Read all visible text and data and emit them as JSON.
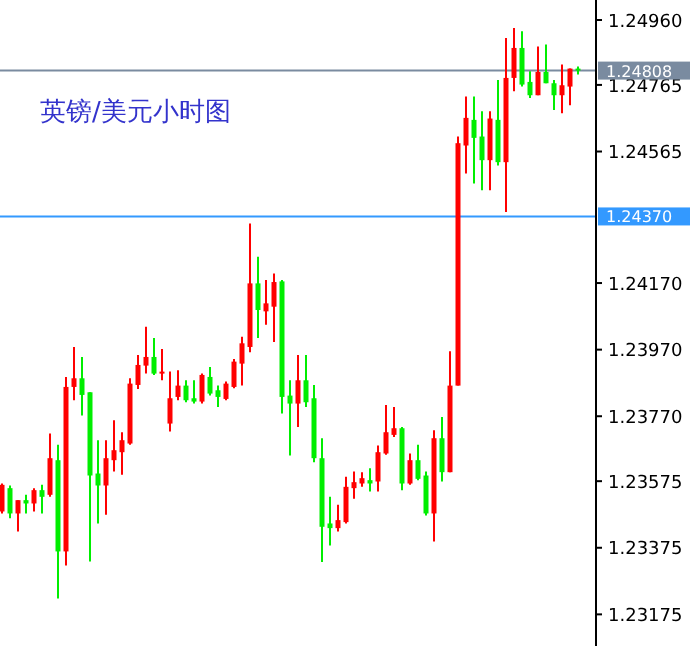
{
  "chart_data": {
    "type": "candlestick",
    "title": "英镑/美元小时图",
    "categories": [
      null,
      null,
      null,
      null,
      null,
      null,
      null,
      null,
      null,
      null,
      null,
      null,
      null,
      null,
      null,
      null,
      null,
      null,
      null,
      null,
      null,
      null,
      null,
      null,
      null,
      null,
      null,
      null,
      null,
      null,
      null,
      null,
      null,
      null,
      null,
      null,
      null,
      null,
      null,
      null,
      null,
      null,
      null,
      null,
      null,
      null,
      null,
      null,
      null,
      null,
      null,
      null,
      null,
      null,
      null,
      null,
      null,
      null,
      null,
      null,
      null,
      null,
      null,
      null,
      null,
      null,
      null,
      null,
      null,
      null,
      null,
      null,
      null
    ],
    "ohlc": [
      [
        1.23484,
        1.23568,
        1.23478,
        1.23564
      ],
      [
        1.23554,
        1.23562,
        1.23464,
        1.23478
      ],
      [
        1.23478,
        1.23518,
        1.23424,
        1.23518
      ],
      [
        1.23518,
        1.23534,
        1.23478,
        1.23508
      ],
      [
        1.23508,
        1.23554,
        1.23484,
        1.23548
      ],
      [
        1.23548,
        1.23564,
        1.23478,
        1.23528
      ],
      [
        1.23534,
        1.23718,
        1.23528,
        1.23644
      ],
      [
        1.23638,
        1.23684,
        1.23223,
        1.23364
      ],
      [
        1.23364,
        1.23888,
        1.23322,
        1.23858
      ],
      [
        1.23858,
        1.23978,
        1.23818,
        1.23884
      ],
      [
        1.23884,
        1.23948,
        1.23772,
        1.23834
      ],
      [
        1.23842,
        1.23842,
        1.23334,
        1.23592
      ],
      [
        1.23598,
        1.23698,
        1.23448,
        1.23562
      ],
      [
        1.23562,
        1.23698,
        1.23474,
        1.23644
      ],
      [
        1.23638,
        1.23758,
        1.23604,
        1.23668
      ],
      [
        1.23662,
        1.23722,
        1.23594,
        1.23698
      ],
      [
        1.23688,
        1.23884,
        1.23684,
        1.23868
      ],
      [
        1.23864,
        1.23954,
        1.23852,
        1.23924
      ],
      [
        1.23922,
        1.24039,
        1.23898,
        1.23948
      ],
      [
        1.23948,
        1.24005,
        1.23894,
        1.23898
      ],
      [
        1.23898,
        1.23972,
        1.23878,
        1.23904
      ],
      [
        1.23748,
        1.23904,
        1.23724,
        1.23824
      ],
      [
        1.23828,
        1.23908,
        1.23818,
        1.23862
      ],
      [
        1.23862,
        1.23878,
        1.23812,
        1.23818
      ],
      [
        1.23824,
        1.23878,
        1.23808,
        1.23814
      ],
      [
        1.23814,
        1.23898,
        1.23808,
        1.23894
      ],
      [
        1.23888,
        1.23918,
        1.23832,
        1.23838
      ],
      [
        1.23848,
        1.23862,
        1.23798,
        1.23828
      ],
      [
        1.23822,
        1.23874,
        1.23818,
        1.23868
      ],
      [
        1.23858,
        1.23942,
        1.23854,
        1.23934
      ],
      [
        1.23928,
        1.24009,
        1.23862,
        1.23989
      ],
      [
        1.23978,
        1.24349,
        1.23962,
        1.24169
      ],
      [
        1.24169,
        1.24249,
        1.24005,
        1.24089
      ],
      [
        1.24085,
        1.24179,
        1.24045,
        1.24109
      ],
      [
        1.24099,
        1.24199,
        1.23993,
        1.24173
      ],
      [
        1.24175,
        1.24179,
        1.23778,
        1.23828
      ],
      [
        1.23832,
        1.23878,
        1.23652,
        1.23808
      ],
      [
        1.23808,
        1.23954,
        1.23738,
        1.23878
      ],
      [
        1.23878,
        1.23954,
        1.23798,
        1.23812
      ],
      [
        1.23824,
        1.23864,
        1.23632,
        1.23644
      ],
      [
        1.23644,
        1.23704,
        1.23332,
        1.23438
      ],
      [
        1.23448,
        1.23528,
        1.23382,
        1.23434
      ],
      [
        1.23434,
        1.23504,
        1.23424,
        1.23458
      ],
      [
        1.23452,
        1.23588,
        1.23448,
        1.23558
      ],
      [
        1.23554,
        1.23604,
        1.23522,
        1.23572
      ],
      [
        1.23568,
        1.23602,
        1.23558,
        1.23584
      ],
      [
        1.23578,
        1.23614,
        1.23544,
        1.23568
      ],
      [
        1.23574,
        1.23682,
        1.23544,
        1.23662
      ],
      [
        1.23658,
        1.23804,
        1.23654,
        1.23722
      ],
      [
        1.23714,
        1.23798,
        1.23708,
        1.23734
      ],
      [
        1.23734,
        1.23738,
        1.23548,
        1.23568
      ],
      [
        1.23568,
        1.23658,
        1.23564,
        1.23638
      ],
      [
        1.23638,
        1.23684,
        1.23578,
        1.23582
      ],
      [
        1.23592,
        1.23604,
        1.23472,
        1.23478
      ],
      [
        1.23478,
        1.23728,
        1.23394,
        1.23704
      ],
      [
        1.23704,
        1.23768,
        1.23574,
        1.23602
      ],
      [
        1.23602,
        1.23965,
        1.23602,
        1.23862
      ],
      [
        1.23862,
        1.2461,
        1.23862,
        1.2459
      ],
      [
        1.24583,
        1.2473,
        1.24499,
        1.24666
      ],
      [
        1.2466,
        1.2473,
        1.24469,
        1.24606
      ],
      [
        1.2461,
        1.24686,
        1.24449,
        1.24539
      ],
      [
        1.24539,
        1.24686,
        1.24449,
        1.24664
      ],
      [
        1.2466,
        1.2478,
        1.24523,
        1.24533
      ],
      [
        1.24533,
        1.24906,
        1.24383,
        1.24786
      ],
      [
        1.24786,
        1.24936,
        1.24746,
        1.24876
      ],
      [
        1.24876,
        1.24926,
        1.2476,
        1.24766
      ],
      [
        1.24774,
        1.24806,
        1.24726,
        1.24734
      ],
      [
        1.24734,
        1.2488,
        1.24734,
        1.24804
      ],
      [
        1.24804,
        1.24886,
        1.2477,
        1.2477
      ],
      [
        1.2477,
        1.2478,
        1.2469,
        1.24734
      ],
      [
        1.24734,
        1.24826,
        1.2468,
        1.24764
      ],
      [
        1.2476,
        1.24814,
        1.24704,
        1.24814
      ],
      [
        1.24814,
        1.2482,
        1.24796,
        1.24808
      ]
    ],
    "colors": [
      "#ff0000",
      "#00ee00",
      "#ff0000",
      "#00ee00",
      "#ff0000",
      "#00ee00",
      "#ff0000",
      "#00ee00",
      "#ff0000",
      "#ff0000",
      "#00ee00",
      "#00ee00",
      "#00ee00",
      "#ff0000",
      "#ff0000",
      "#ff0000",
      "#ff0000",
      "#ff0000",
      "#ff0000",
      "#00ee00",
      "#ff0000",
      "#ff0000",
      "#ff0000",
      "#00ee00",
      "#00ee00",
      "#ff0000",
      "#00ee00",
      "#00ee00",
      "#ff0000",
      "#ff0000",
      "#ff0000",
      "#ff0000",
      "#00ee00",
      "#ff0000",
      "#ff0000",
      "#00ee00",
      "#00ee00",
      "#ff0000",
      "#00ee00",
      "#00ee00",
      "#00ee00",
      "#00ee00",
      "#ff0000",
      "#ff0000",
      "#ff0000",
      "#ff0000",
      "#00ee00",
      "#ff0000",
      "#ff0000",
      "#ff0000",
      "#00ee00",
      "#ff0000",
      "#00ee00",
      "#00ee00",
      "#ff0000",
      "#00ee00",
      "#ff0000",
      "#ff0000",
      "#ff0000",
      "#00ee00",
      "#00ee00",
      "#ff0000",
      "#00ee00",
      "#ff0000",
      "#ff0000",
      "#00ee00",
      "#00ee00",
      "#ff0000",
      "#00ee00",
      "#00ee00",
      "#ff0000",
      "#ff0000",
      "#00ee00"
    ],
    "ylim": [
      1.2308,
      1.2502
    ],
    "yticks": [
      {
        "value": 1.2496,
        "label": "1.24960"
      },
      {
        "value": 1.24765,
        "label": "1.24765"
      },
      {
        "value": 1.24565,
        "label": "1.24565"
      },
      {
        "value": 1.2417,
        "label": "1.24170"
      },
      {
        "value": 1.2397,
        "label": "1.23970"
      },
      {
        "value": 1.2377,
        "label": "1.23770"
      },
      {
        "value": 1.23575,
        "label": "1.23575"
      },
      {
        "value": 1.23375,
        "label": "1.23375"
      },
      {
        "value": 1.23175,
        "label": "1.23175"
      }
    ],
    "ref_lines": [
      {
        "axis": "y",
        "value": 1.24808,
        "label": "1.24808",
        "color": "#7a8ba0"
      },
      {
        "axis": "y",
        "value": 1.2437,
        "label": "1.24370",
        "color": "#3399ff"
      }
    ]
  }
}
